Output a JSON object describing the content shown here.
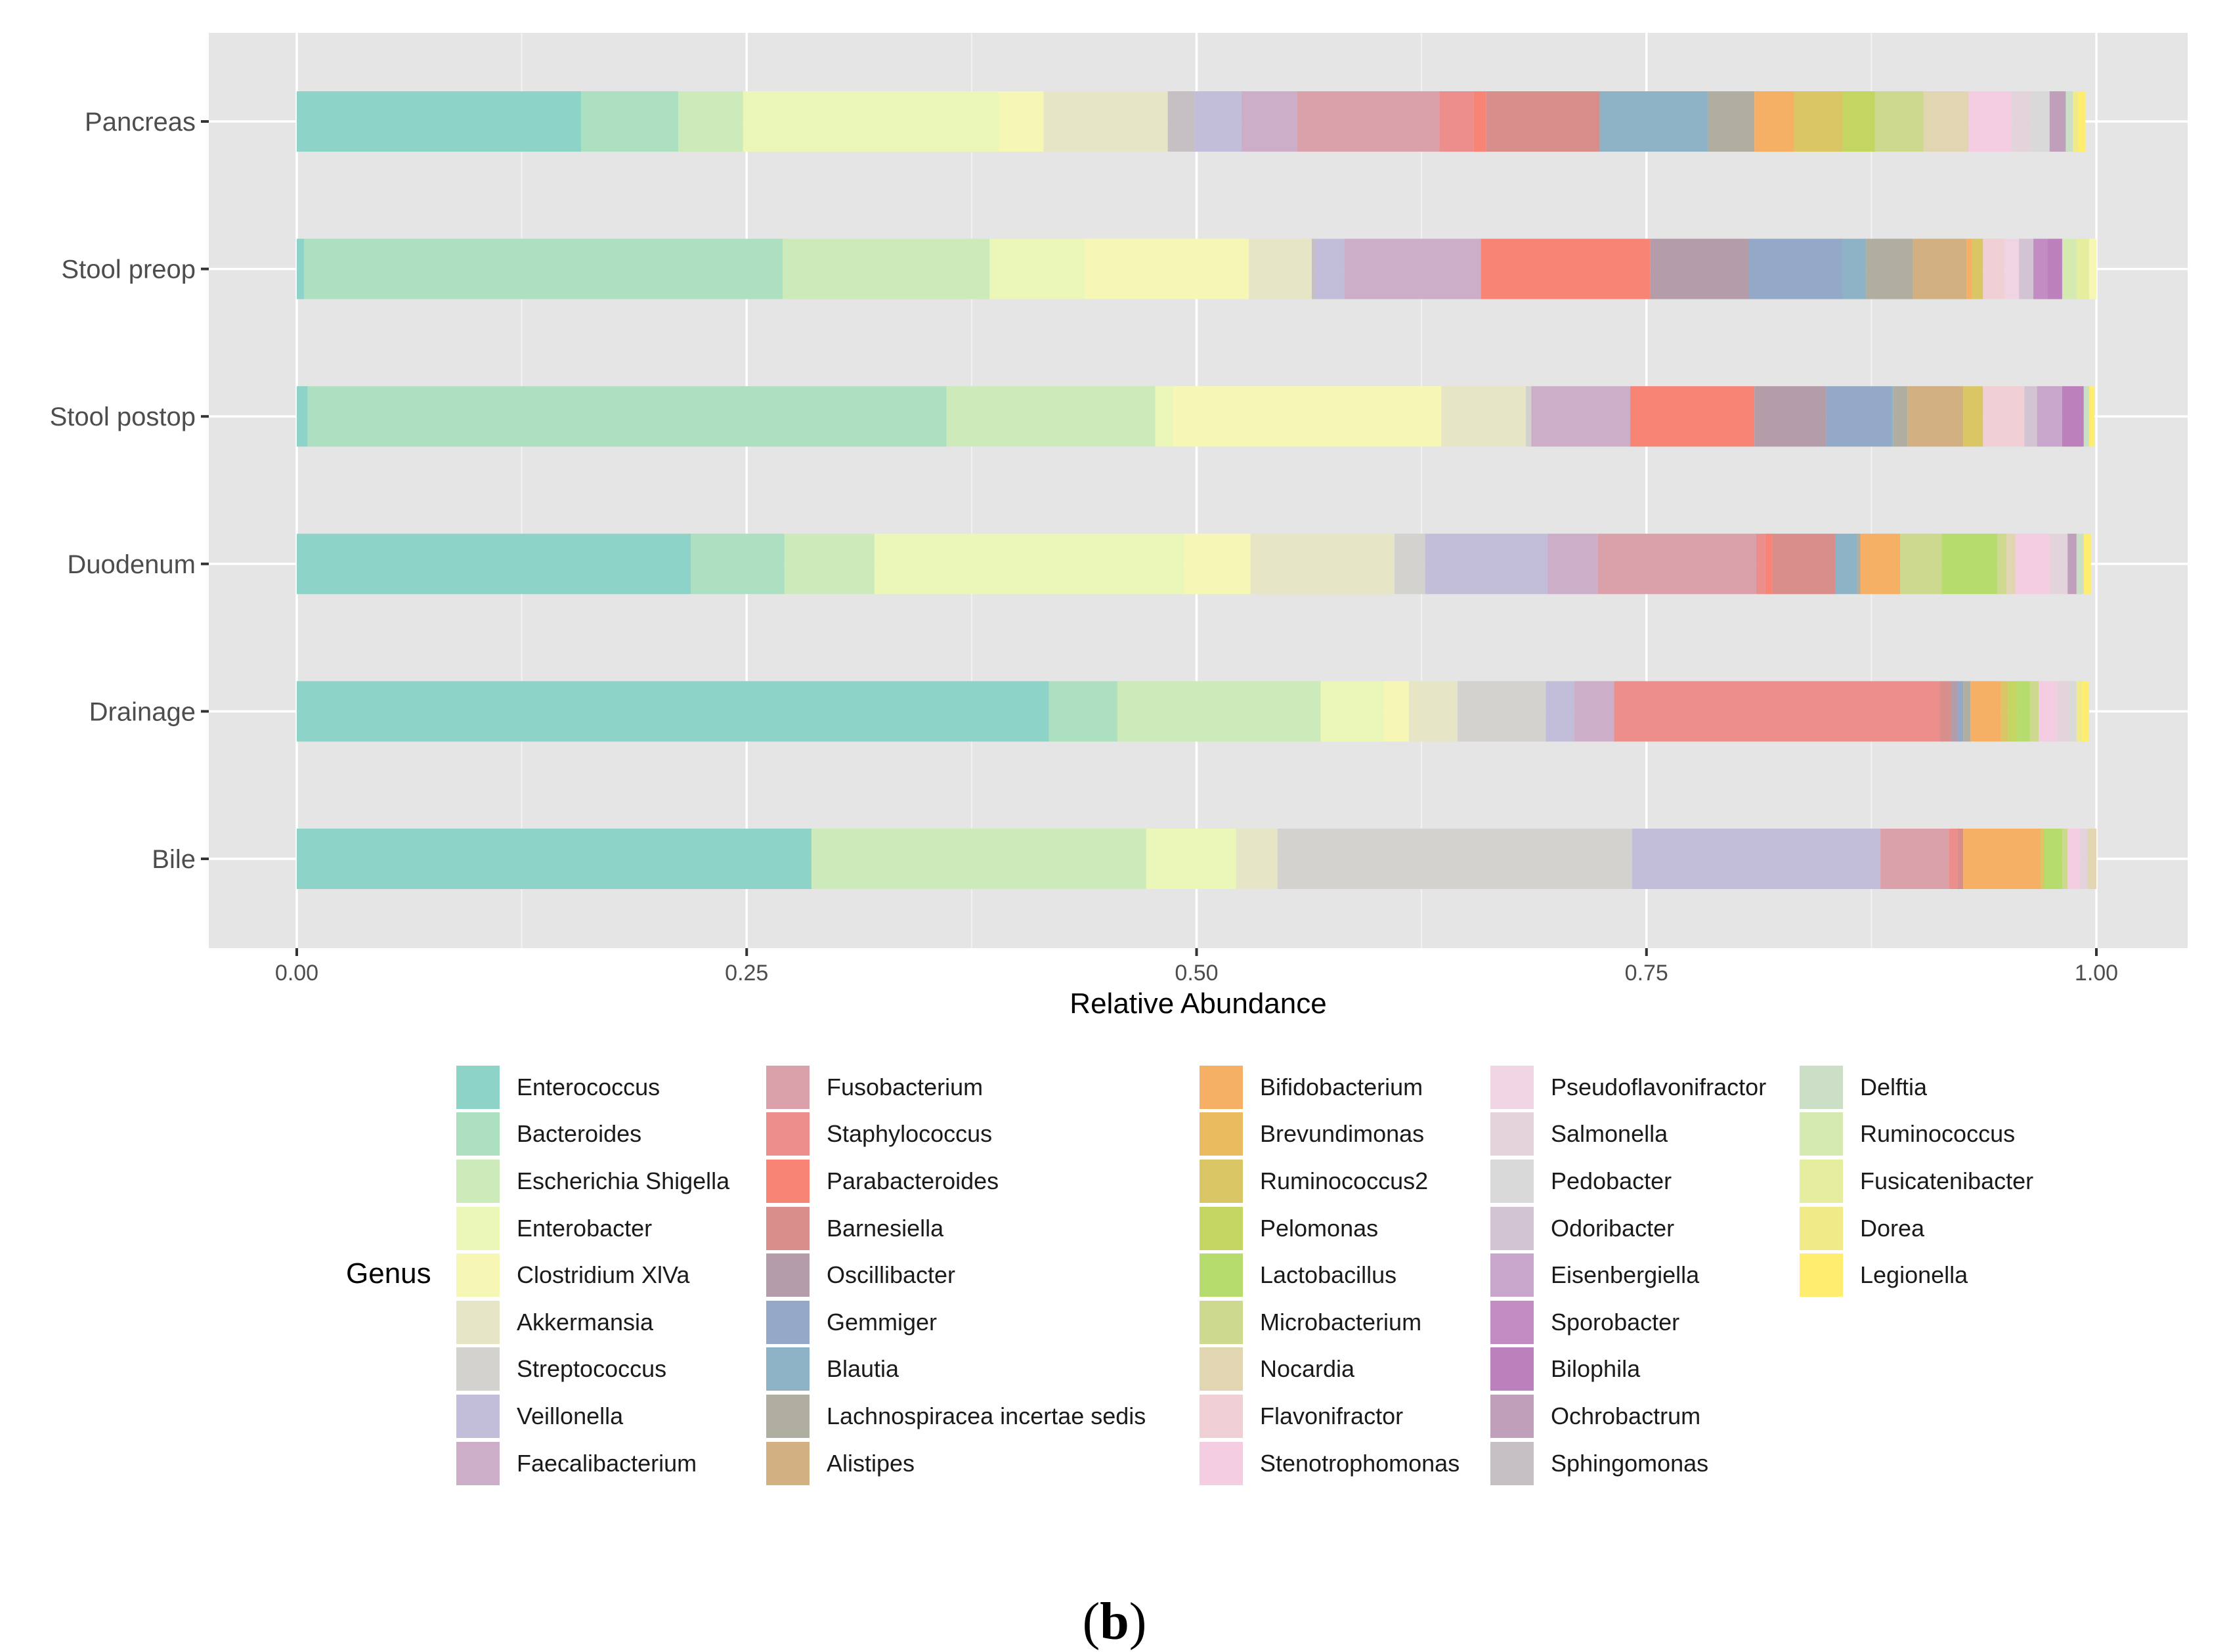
{
  "chart_data": {
    "type": "bar",
    "orientation": "horizontal",
    "stacked": true,
    "xlabel": "Relative Abundance",
    "ylabel": "",
    "xlim": [
      0,
      1
    ],
    "xticks": [
      0,
      0.25,
      0.5,
      0.75,
      1
    ],
    "xtick_labels": [
      "0.00",
      "0.25",
      "0.50",
      "0.75",
      "1.00"
    ],
    "grid": true,
    "legend_title": "Genus",
    "legend_position": "bottom",
    "categories": [
      "Pancreas",
      "Stool preop",
      "Stool postop",
      "Duodenum",
      "Drainage",
      "Bile"
    ],
    "genera": [
      {
        "name": "Enterococcus",
        "color": "#8dd3c7"
      },
      {
        "name": "Bacteroides",
        "color": "#addfc1"
      },
      {
        "name": "Escherichia Shigella",
        "color": "#cdebba"
      },
      {
        "name": "Enterobacter",
        "color": "#ebf7b9"
      },
      {
        "name": "Clostridium XlVa",
        "color": "#f7f7b5"
      },
      {
        "name": "Akkermansia",
        "color": "#e6e5c5"
      },
      {
        "name": "Streptococcus",
        "color": "#d3d2ce"
      },
      {
        "name": "Veillonella",
        "color": "#c2bed9"
      },
      {
        "name": "Faecalibacterium",
        "color": "#cdaec8"
      },
      {
        "name": "Fusobacterium",
        "color": "#dba1ab"
      },
      {
        "name": "Staphylococcus",
        "color": "#ec8f8c"
      },
      {
        "name": "Parabacteroides",
        "color": "#f78475"
      },
      {
        "name": "Barnesiella",
        "color": "#d88e8a"
      },
      {
        "name": "Oscillibacter",
        "color": "#b59ca9"
      },
      {
        "name": "Gemmiger",
        "color": "#94a9c8"
      },
      {
        "name": "Blautia",
        "color": "#8eb3c6"
      },
      {
        "name": "Lachnospiracea incertae sedis",
        "color": "#afaea1"
      },
      {
        "name": "Alistipes",
        "color": "#d3b082"
      },
      {
        "name": "Bifidobacterium",
        "color": "#f6b066"
      },
      {
        "name": "Brevundimonas",
        "color": "#ebbc5f"
      },
      {
        "name": "Ruminococcus2",
        "color": "#dac665"
      },
      {
        "name": "Pelomonas",
        "color": "#c4d561"
      },
      {
        "name": "Lactobacillus",
        "color": "#b5dc6c"
      },
      {
        "name": "Microbacterium",
        "color": "#ccd98e"
      },
      {
        "name": "Nocardia",
        "color": "#e1d6b1"
      },
      {
        "name": "Flavonifractor",
        "color": "#f0cfd5"
      },
      {
        "name": "Stenotrophomonas",
        "color": "#f4cde3"
      },
      {
        "name": "Pseudoflavonifractor",
        "color": "#efd4e3"
      },
      {
        "name": "Salmonella",
        "color": "#e3d4dc"
      },
      {
        "name": "Pedobacter",
        "color": "#d9d9d9"
      },
      {
        "name": "Odoribacter",
        "color": "#d3c4d4"
      },
      {
        "name": "Eisenbergiella",
        "color": "#c9a6cb"
      },
      {
        "name": "Sporobacter",
        "color": "#c18dc3"
      },
      {
        "name": "Bilophila",
        "color": "#bc80bd"
      },
      {
        "name": "Ochrobactrum",
        "color": "#c09fbb"
      },
      {
        "name": "Sphingomonas",
        "color": "#c6bfc3"
      },
      {
        "name": "Delftia",
        "color": "#cbdfc6"
      },
      {
        "name": "Ruminococcus",
        "color": "#d4eab0"
      },
      {
        "name": "Fusicatenibacter",
        "color": "#e4ee9e"
      },
      {
        "name": "Dorea",
        "color": "#f1ea88"
      },
      {
        "name": "Legionella",
        "color": "#ffed6f"
      }
    ],
    "series": [
      {
        "category": "Pancreas",
        "segments": [
          {
            "genus": "Enterococcus",
            "value": 0.158
          },
          {
            "genus": "Bacteroides",
            "value": 0.054
          },
          {
            "genus": "Escherichia Shigella",
            "value": 0.036
          },
          {
            "genus": "Enterobacter",
            "value": 0.142
          },
          {
            "genus": "Clostridium XlVa",
            "value": 0.025
          },
          {
            "genus": "Akkermansia",
            "value": 0.069
          },
          {
            "genus": "Sphingomonas",
            "value": 0.015
          },
          {
            "genus": "Veillonella",
            "value": 0.026
          },
          {
            "genus": "Faecalibacterium",
            "value": 0.031
          },
          {
            "genus": "Fusobacterium",
            "value": 0.079
          },
          {
            "genus": "Staphylococcus",
            "value": 0.019
          },
          {
            "genus": "Parabacteroides",
            "value": 0.007
          },
          {
            "genus": "Barnesiella",
            "value": 0.063
          },
          {
            "genus": "Blautia",
            "value": 0.06
          },
          {
            "genus": "Lachnospiracea incertae sedis",
            "value": 0.026
          },
          {
            "genus": "Bifidobacterium",
            "value": 0.022
          },
          {
            "genus": "Ruminococcus2",
            "value": 0.027
          },
          {
            "genus": "Pelomonas",
            "value": 0.018
          },
          {
            "genus": "Microbacterium",
            "value": 0.027
          },
          {
            "genus": "Nocardia",
            "value": 0.025
          },
          {
            "genus": "Stenotrophomonas",
            "value": 0.024
          },
          {
            "genus": "Salmonella",
            "value": 0.011
          },
          {
            "genus": "Pedobacter",
            "value": 0.01
          },
          {
            "genus": "Ochrobactrum",
            "value": 0.009
          },
          {
            "genus": "Delftia",
            "value": 0.004
          },
          {
            "genus": "Dorea",
            "value": 0.003
          },
          {
            "genus": "Legionella",
            "value": 0.004
          }
        ]
      },
      {
        "category": "Stool preop",
        "segments": [
          {
            "genus": "Enterococcus",
            "value": 0.004
          },
          {
            "genus": "Bacteroides",
            "value": 0.266
          },
          {
            "genus": "Escherichia Shigella",
            "value": 0.115
          },
          {
            "genus": "Enterobacter",
            "value": 0.053
          },
          {
            "genus": "Clostridium XlVa",
            "value": 0.091
          },
          {
            "genus": "Akkermansia",
            "value": 0.035
          },
          {
            "genus": "Sphingomonas",
            "value": 0.002
          },
          {
            "genus": "Veillonella",
            "value": 0.016
          },
          {
            "genus": "Faecalibacterium",
            "value": 0.076
          },
          {
            "genus": "Parabacteroides",
            "value": 0.094
          },
          {
            "genus": "Oscillibacter",
            "value": 0.055
          },
          {
            "genus": "Gemmiger",
            "value": 0.052
          },
          {
            "genus": "Blautia",
            "value": 0.013
          },
          {
            "genus": "Lachnospiracea incertae sedis",
            "value": 0.026
          },
          {
            "genus": "Alistipes",
            "value": 0.03
          },
          {
            "genus": "Bifidobacterium",
            "value": 0.003
          },
          {
            "genus": "Ruminococcus2",
            "value": 0.006
          },
          {
            "genus": "Flavonifractor",
            "value": 0.012
          },
          {
            "genus": "Pseudoflavonifractor",
            "value": 0.008
          },
          {
            "genus": "Odoribacter",
            "value": 0.008
          },
          {
            "genus": "Sporobacter",
            "value": 0.008
          },
          {
            "genus": "Bilophila",
            "value": 0.008
          },
          {
            "genus": "Ruminococcus",
            "value": 0.008
          },
          {
            "genus": "Fusicatenibacter",
            "value": 0.007
          },
          {
            "genus": "Clostridium XlVa",
            "value": 0.004
          }
        ]
      },
      {
        "category": "Stool postop",
        "segments": [
          {
            "genus": "Enterococcus",
            "value": 0.006
          },
          {
            "genus": "Bacteroides",
            "value": 0.355
          },
          {
            "genus": "Escherichia Shigella",
            "value": 0.116
          },
          {
            "genus": "Enterobacter",
            "value": 0.01
          },
          {
            "genus": "Clostridium XlVa",
            "value": 0.149
          },
          {
            "genus": "Akkermansia",
            "value": 0.047
          },
          {
            "genus": "Streptococcus",
            "value": 0.003
          },
          {
            "genus": "Faecalibacterium",
            "value": 0.055
          },
          {
            "genus": "Parabacteroides",
            "value": 0.069
          },
          {
            "genus": "Oscillibacter",
            "value": 0.04
          },
          {
            "genus": "Gemmiger",
            "value": 0.036
          },
          {
            "genus": "Blautia",
            "value": 0.001
          },
          {
            "genus": "Lachnospiracea incertae sedis",
            "value": 0.008
          },
          {
            "genus": "Alistipes",
            "value": 0.031
          },
          {
            "genus": "Ruminococcus2",
            "value": 0.011
          },
          {
            "genus": "Flavonifractor",
            "value": 0.023
          },
          {
            "genus": "Odoribacter",
            "value": 0.007
          },
          {
            "genus": "Eisenbergiella",
            "value": 0.014
          },
          {
            "genus": "Bilophila",
            "value": 0.012
          },
          {
            "genus": "Delftia",
            "value": 0.003
          },
          {
            "genus": "Legionella",
            "value": 0.003
          }
        ]
      },
      {
        "category": "Duodenum",
        "segments": [
          {
            "genus": "Enterococcus",
            "value": 0.219
          },
          {
            "genus": "Bacteroides",
            "value": 0.052
          },
          {
            "genus": "Escherichia Shigella",
            "value": 0.05
          },
          {
            "genus": "Enterobacter",
            "value": 0.172
          },
          {
            "genus": "Clostridium XlVa",
            "value": 0.037
          },
          {
            "genus": "Akkermansia",
            "value": 0.08
          },
          {
            "genus": "Streptococcus",
            "value": 0.017
          },
          {
            "genus": "Veillonella",
            "value": 0.068
          },
          {
            "genus": "Faecalibacterium",
            "value": 0.028
          },
          {
            "genus": "Fusobacterium",
            "value": 0.088
          },
          {
            "genus": "Staphylococcus",
            "value": 0.005
          },
          {
            "genus": "Parabacteroides",
            "value": 0.004
          },
          {
            "genus": "Barnesiella",
            "value": 0.035
          },
          {
            "genus": "Blautia",
            "value": 0.012
          },
          {
            "genus": "Lachnospiracea incertae sedis",
            "value": 0.002
          },
          {
            "genus": "Bifidobacterium",
            "value": 0.022
          },
          {
            "genus": "Microbacterium",
            "value": 0.023
          },
          {
            "genus": "Lactobacillus",
            "value": 0.031
          },
          {
            "genus": "Microbacterium",
            "value": 0.005
          },
          {
            "genus": "Nocardia",
            "value": 0.005
          },
          {
            "genus": "Stenotrophomonas",
            "value": 0.019
          },
          {
            "genus": "Salmonella",
            "value": 0.01
          },
          {
            "genus": "Ochrobactrum",
            "value": 0.005
          },
          {
            "genus": "Delftia",
            "value": 0.004
          },
          {
            "genus": "Legionella",
            "value": 0.004
          }
        ]
      },
      {
        "category": "Drainage",
        "segments": [
          {
            "genus": "Enterococcus",
            "value": 0.418
          },
          {
            "genus": "Bacteroides",
            "value": 0.038
          },
          {
            "genus": "Escherichia Shigella",
            "value": 0.113
          },
          {
            "genus": "Enterobacter",
            "value": 0.035
          },
          {
            "genus": "Clostridium XlVa",
            "value": 0.014
          },
          {
            "genus": "Akkermansia",
            "value": 0.027
          },
          {
            "genus": "Streptococcus",
            "value": 0.049
          },
          {
            "genus": "Veillonella",
            "value": 0.016
          },
          {
            "genus": "Faecalibacterium",
            "value": 0.022
          },
          {
            "genus": "Staphylococcus",
            "value": 0.181
          },
          {
            "genus": "Barnesiella",
            "value": 0.006
          },
          {
            "genus": "Oscillibacter",
            "value": 0.004
          },
          {
            "genus": "Gemmiger",
            "value": 0.003
          },
          {
            "genus": "Lachnospiracea incertae sedis",
            "value": 0.004
          },
          {
            "genus": "Bifidobacterium",
            "value": 0.017
          },
          {
            "genus": "Ruminococcus2",
            "value": 0.004
          },
          {
            "genus": "Pelomonas",
            "value": 0.005
          },
          {
            "genus": "Lactobacillus",
            "value": 0.007
          },
          {
            "genus": "Microbacterium",
            "value": 0.005
          },
          {
            "genus": "Stenotrophomonas",
            "value": 0.01
          },
          {
            "genus": "Salmonella",
            "value": 0.007
          },
          {
            "genus": "Pedobacter",
            "value": 0.004
          },
          {
            "genus": "Dorea",
            "value": 0.003
          },
          {
            "genus": "Legionella",
            "value": 0.004
          }
        ]
      },
      {
        "category": "Bile",
        "segments": [
          {
            "genus": "Enterococcus",
            "value": 0.286
          },
          {
            "genus": "Escherichia Shigella",
            "value": 0.186
          },
          {
            "genus": "Enterobacter",
            "value": 0.05
          },
          {
            "genus": "Akkermansia",
            "value": 0.023
          },
          {
            "genus": "Streptococcus",
            "value": 0.197
          },
          {
            "genus": "Veillonella",
            "value": 0.138
          },
          {
            "genus": "Fusobacterium",
            "value": 0.038
          },
          {
            "genus": "Staphylococcus",
            "value": 0.005
          },
          {
            "genus": "Barnesiella",
            "value": 0.003
          },
          {
            "genus": "Bifidobacterium",
            "value": 0.043
          },
          {
            "genus": "Ruminococcus2",
            "value": 0.002
          },
          {
            "genus": "Lactobacillus",
            "value": 0.01
          },
          {
            "genus": "Microbacterium",
            "value": 0.003
          },
          {
            "genus": "Stenotrophomonas",
            "value": 0.007
          },
          {
            "genus": "Salmonella",
            "value": 0.004
          },
          {
            "genus": "Nocardia",
            "value": 0.005
          }
        ]
      }
    ]
  },
  "caption": {
    "open": "(",
    "letter": "b",
    "close": ")"
  }
}
